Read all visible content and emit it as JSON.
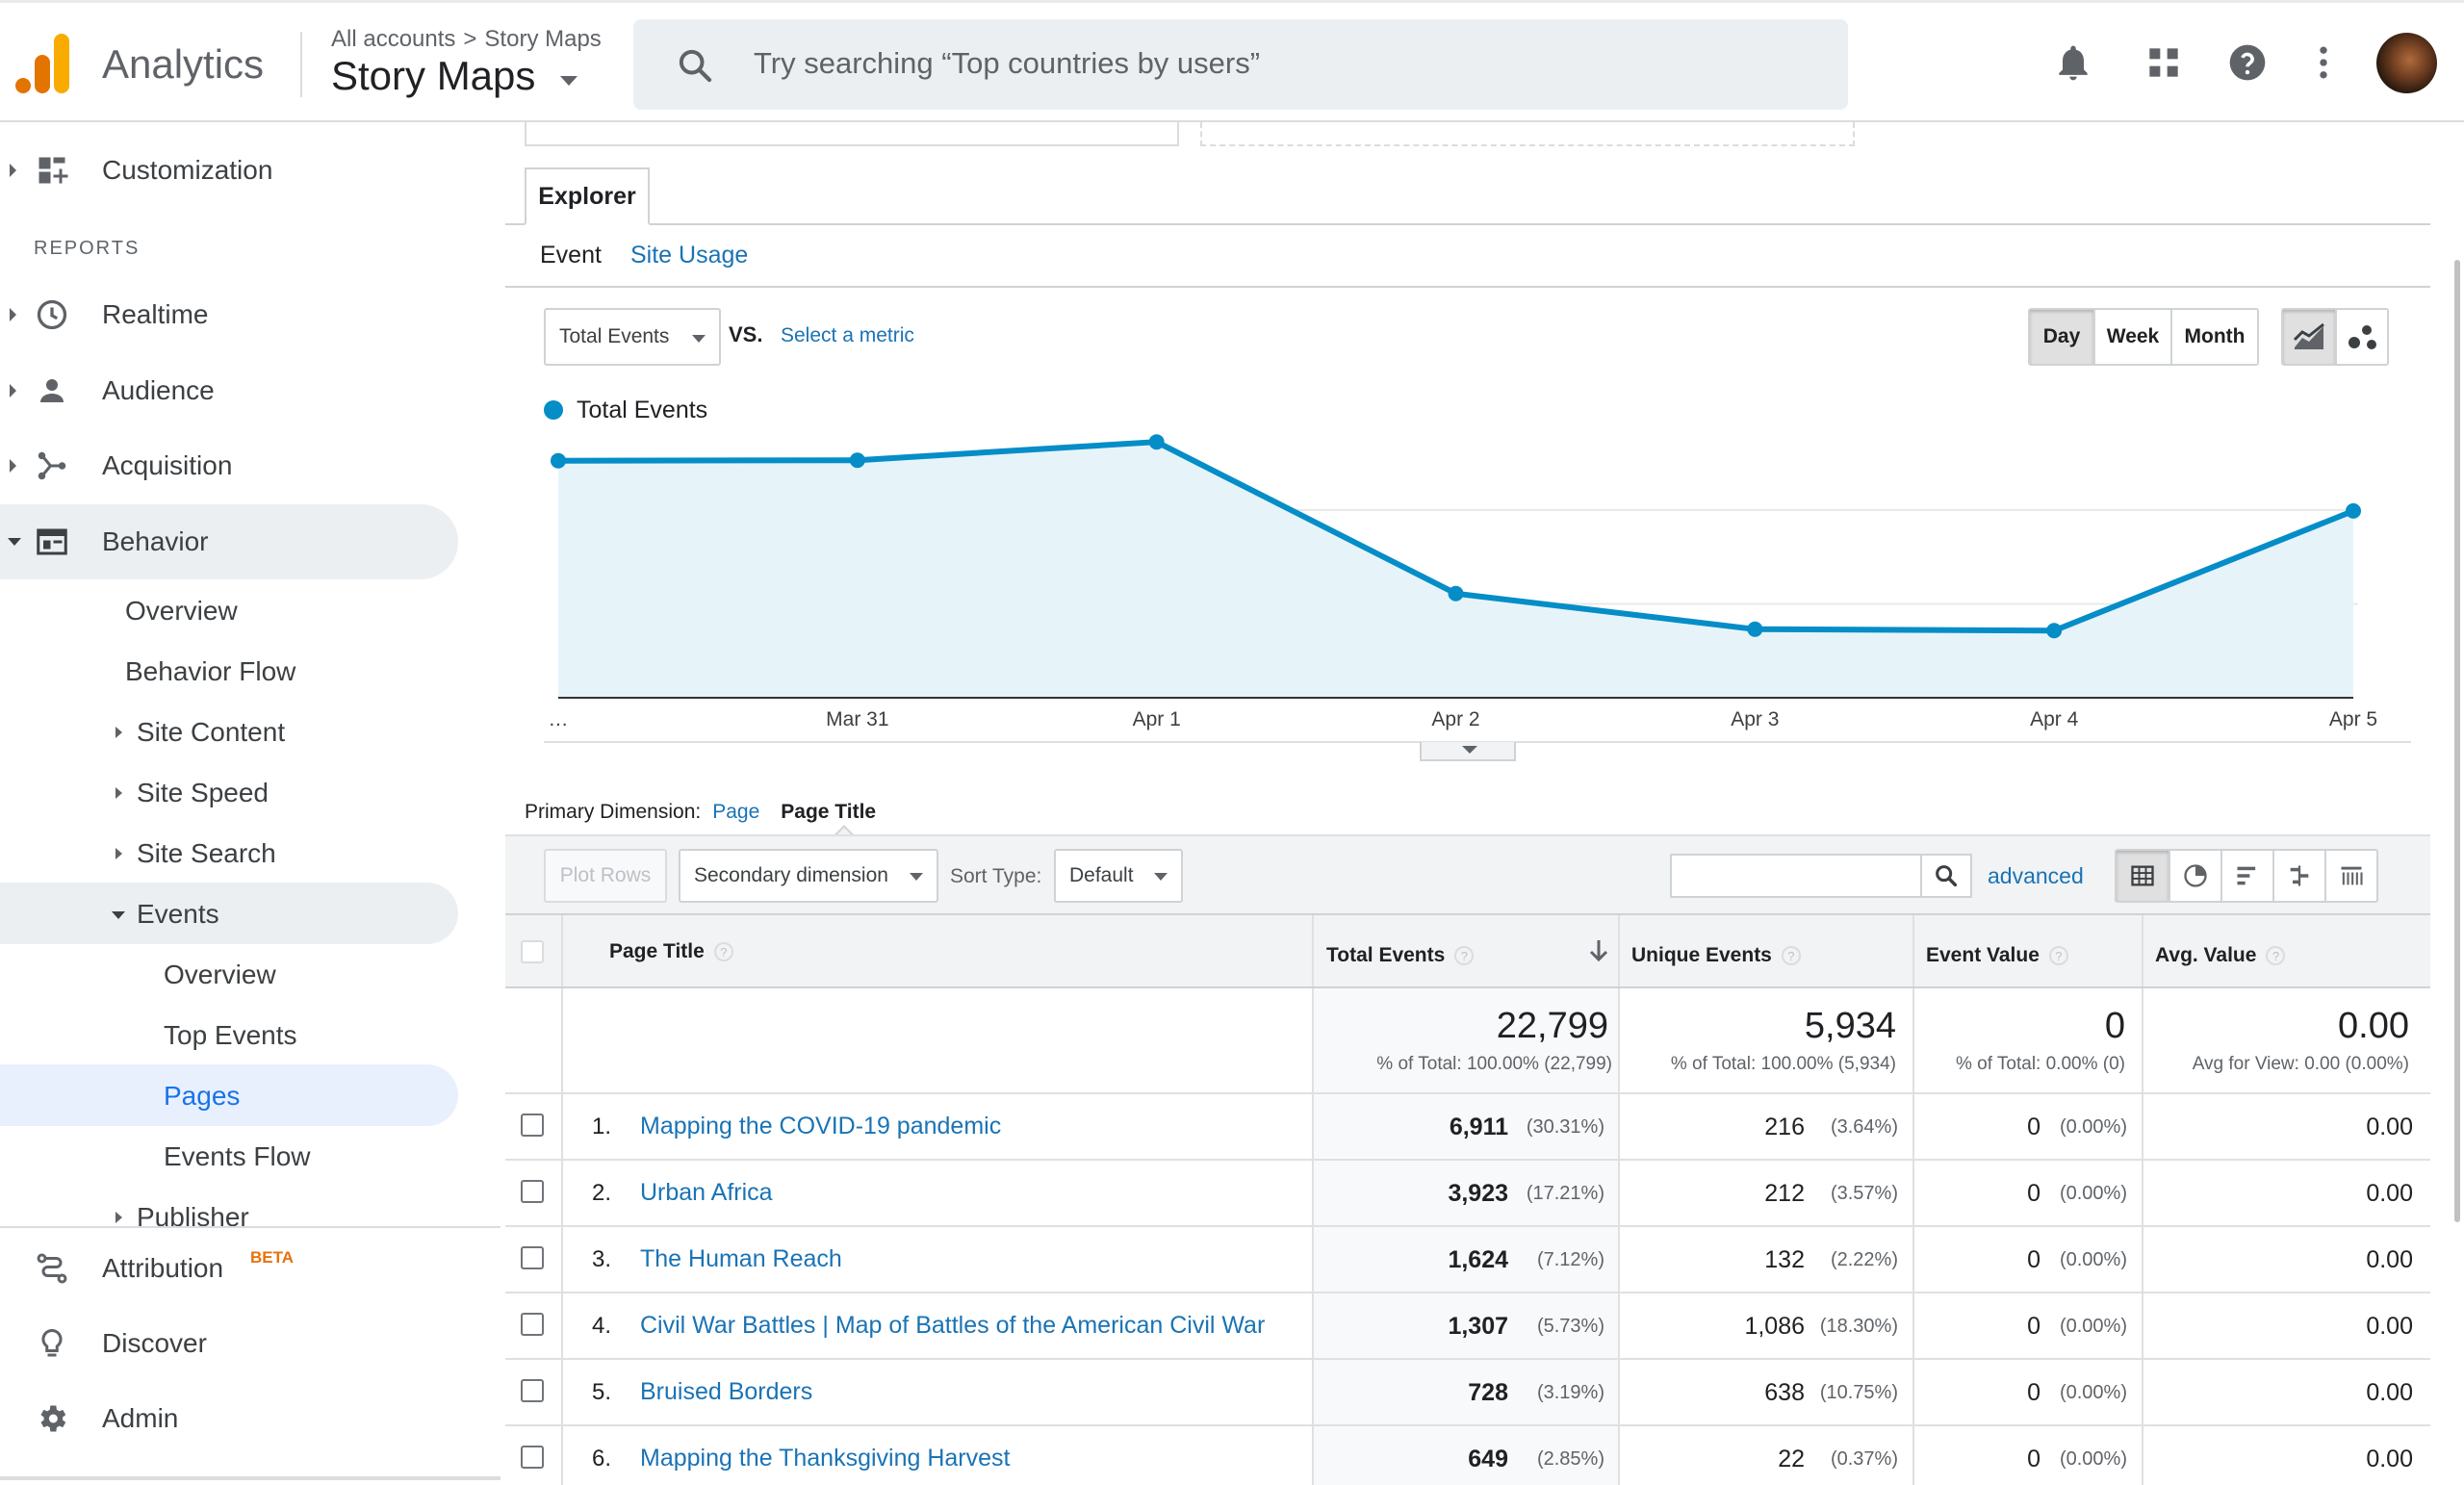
{
  "header": {
    "app_name": "Analytics",
    "breadcrumb": [
      "All accounts",
      "Story Maps"
    ],
    "breadcrumb_sep": ">",
    "property": "Story Maps",
    "search_placeholder": "Try searching “Top countries by users”"
  },
  "sidebar": {
    "customization": "Customization",
    "reports_header": "REPORTS",
    "realtime": "Realtime",
    "audience": "Audience",
    "acquisition": "Acquisition",
    "behavior": "Behavior",
    "behavior_sub": {
      "overview": "Overview",
      "behavior_flow": "Behavior Flow",
      "site_content": "Site Content",
      "site_speed": "Site Speed",
      "site_search": "Site Search",
      "events": "Events"
    },
    "events_sub": {
      "overview": "Overview",
      "top_events": "Top Events",
      "pages": "Pages",
      "events_flow": "Events Flow"
    },
    "publisher": "Publisher",
    "attribution": "Attribution",
    "beta": "BETA",
    "discover": "Discover",
    "admin": "Admin"
  },
  "explorer": {
    "tab": "Explorer",
    "subtab_event": "Event",
    "subtab_site_usage": "Site Usage",
    "metric": "Total Events",
    "vs": "VS.",
    "select_metric": "Select a metric",
    "periods": [
      "Day",
      "Week",
      "Month"
    ],
    "active_period": "Day"
  },
  "chart_data": {
    "type": "area",
    "series": [
      {
        "name": "Total Events",
        "color": "#058dc7",
        "values": [
          5050,
          5060,
          5450,
          2220,
          1460,
          1430,
          3980
        ]
      }
    ],
    "x": [
      "…",
      "Mar 31",
      "Apr 1",
      "Apr 2",
      "Apr 3",
      "Apr 4",
      "Apr 5"
    ],
    "y_ticks": [
      2000,
      4000,
      6000
    ],
    "y_tick_labels": [
      "2,000",
      "4,000",
      "6,000"
    ],
    "ylim": [
      0,
      5700
    ],
    "grid": true,
    "legend": "top-left"
  },
  "table_controls": {
    "primary_dimension_label": "Primary Dimension:",
    "dim_page": "Page",
    "dim_page_title": "Page Title",
    "plot_rows": "Plot Rows",
    "secondary_dimension": "Secondary dimension",
    "sort_type_label": "Sort Type:",
    "sort_type": "Default",
    "advanced": "advanced"
  },
  "table": {
    "columns": [
      "Page Title",
      "Total Events",
      "Unique Events",
      "Event Value",
      "Avg. Value"
    ],
    "help": "?",
    "totals": {
      "total_events": "22,799",
      "total_events_sub": "% of Total: 100.00% (22,799)",
      "unique_events": "5,934",
      "unique_events_sub": "% of Total: 100.00% (5,934)",
      "event_value": "0",
      "event_value_sub": "% of Total: 0.00% (0)",
      "avg_value": "0.00",
      "avg_value_sub": "Avg for View: 0.00 (0.00%)"
    },
    "rows": [
      {
        "n": "1.",
        "title": "Mapping the COVID-19 pandemic",
        "te": "6,911",
        "te_pct": "(30.31%)",
        "ue": "216",
        "ue_pct": "(3.64%)",
        "ev": "0",
        "ev_pct": "(0.00%)",
        "av": "0.00"
      },
      {
        "n": "2.",
        "title": "Urban Africa",
        "te": "3,923",
        "te_pct": "(17.21%)",
        "ue": "212",
        "ue_pct": "(3.57%)",
        "ev": "0",
        "ev_pct": "(0.00%)",
        "av": "0.00"
      },
      {
        "n": "3.",
        "title": "The Human Reach",
        "te": "1,624",
        "te_pct": "(7.12%)",
        "ue": "132",
        "ue_pct": "(2.22%)",
        "ev": "0",
        "ev_pct": "(0.00%)",
        "av": "0.00"
      },
      {
        "n": "4.",
        "title": "Civil War Battles | Map of Battles of the American Civil War",
        "te": "1,307",
        "te_pct": "(5.73%)",
        "ue": "1,086",
        "ue_pct": "(18.30%)",
        "ev": "0",
        "ev_pct": "(0.00%)",
        "av": "0.00"
      },
      {
        "n": "5.",
        "title": "Bruised Borders",
        "te": "728",
        "te_pct": "(3.19%)",
        "ue": "638",
        "ue_pct": "(10.75%)",
        "ev": "0",
        "ev_pct": "(0.00%)",
        "av": "0.00"
      },
      {
        "n": "6.",
        "title": "Mapping the Thanksgiving Harvest",
        "te": "649",
        "te_pct": "(2.85%)",
        "ue": "22",
        "ue_pct": "(0.37%)",
        "ev": "0",
        "ev_pct": "(0.00%)",
        "av": "0.00"
      }
    ]
  }
}
